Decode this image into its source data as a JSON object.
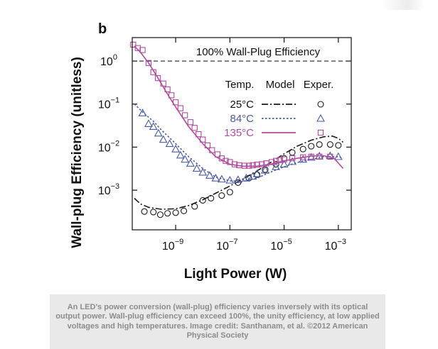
{
  "chart_data": {
    "type": "scatter",
    "panel_label": "b",
    "xlabel": "Light Power (W)",
    "ylabel": "Wall-plug Efficiency (unitless)",
    "xscale": "log",
    "yscale": "log",
    "xlim": [
      2.5e-11,
      0.003
    ],
    "ylim": [
      0.00012,
      3.5
    ],
    "x_ticks": [
      {
        "value": 1e-09,
        "base": "10",
        "exp": "−9"
      },
      {
        "value": 1e-07,
        "base": "10",
        "exp": "−7"
      },
      {
        "value": 1e-05,
        "base": "10",
        "exp": "−5"
      },
      {
        "value": 0.001,
        "base": "10",
        "exp": "−3"
      }
    ],
    "y_ticks": [
      {
        "value": 1,
        "base": "10",
        "exp": "0"
      },
      {
        "value": 0.1,
        "base": "10",
        "exp": "−1"
      },
      {
        "value": 0.01,
        "base": "10",
        "exp": "−2"
      },
      {
        "value": 0.001,
        "base": "10",
        "exp": "−3"
      }
    ],
    "reference_line": {
      "y": 1,
      "label": "100% Wall-Plug Efficiency",
      "style": "dashed"
    },
    "legend": {
      "placement": "top-right",
      "headers": [
        "Temp.",
        "Model",
        "Exper."
      ]
    },
    "series": [
      {
        "name": "25°C",
        "color": "#1a1a1a",
        "line_style": "dashdot",
        "marker": "circle",
        "model": [
          [
            3e-11,
            0.00065
          ],
          [
            5e-11,
            0.00048
          ],
          [
            1e-10,
            0.0004
          ],
          [
            3e-10,
            0.00036
          ],
          [
            1e-09,
            0.00037
          ],
          [
            3e-09,
            0.00044
          ],
          [
            1e-08,
            0.0006
          ],
          [
            3e-08,
            0.00085
          ],
          [
            1e-07,
            0.00125
          ],
          [
            3e-07,
            0.0018
          ],
          [
            1e-06,
            0.0028
          ],
          [
            3e-06,
            0.0043
          ],
          [
            1e-05,
            0.007
          ],
          [
            3e-05,
            0.0105
          ],
          [
            0.0001,
            0.0145
          ],
          [
            0.0003,
            0.0175
          ],
          [
            0.0006,
            0.018
          ],
          [
            0.001,
            0.016
          ],
          [
            0.0015,
            0.013
          ]
        ],
        "exper": [
          [
            7e-11,
            0.00032
          ],
          [
            1.5e-10,
            0.00031
          ],
          [
            2.7e-10,
            0.00027
          ],
          [
            5e-10,
            0.00029
          ],
          [
            1e-09,
            0.0003
          ],
          [
            2e-09,
            0.00033
          ],
          [
            5e-09,
            0.00042
          ],
          [
            1e-08,
            0.00058
          ],
          [
            2e-08,
            0.00065
          ],
          [
            5e-08,
            0.00075
          ],
          [
            1e-07,
            0.0009
          ],
          [
            2e-07,
            0.0015
          ],
          [
            5e-07,
            0.0019
          ],
          [
            1e-06,
            0.0023
          ],
          [
            2e-06,
            0.003
          ],
          [
            5e-06,
            0.004
          ],
          [
            1e-05,
            0.0055
          ],
          [
            2e-05,
            0.0075
          ],
          [
            5e-05,
            0.009
          ],
          [
            0.0001,
            0.0105
          ],
          [
            0.0002,
            0.0115
          ],
          [
            0.0005,
            0.0115
          ],
          [
            0.001,
            0.011
          ]
        ]
      },
      {
        "name": "84°C",
        "color": "#4a5aa8",
        "line_style": "dotted",
        "marker": "triangle",
        "model": [
          [
            3e-11,
            0.1
          ],
          [
            7e-11,
            0.06
          ],
          [
            1.5e-10,
            0.04
          ],
          [
            3e-10,
            0.025
          ],
          [
            1e-09,
            0.012
          ],
          [
            3e-09,
            0.006
          ],
          [
            1e-08,
            0.0032
          ],
          [
            3e-08,
            0.002
          ],
          [
            1e-07,
            0.00165
          ],
          [
            3e-07,
            0.0016
          ],
          [
            1e-06,
            0.0019
          ],
          [
            3e-06,
            0.0026
          ],
          [
            1e-05,
            0.0035
          ],
          [
            3e-05,
            0.0044
          ],
          [
            0.0001,
            0.0052
          ],
          [
            0.0003,
            0.006
          ],
          [
            0.001,
            0.006
          ],
          [
            0.0015,
            0.0055
          ]
        ],
        "exper": [
          [
            6e-11,
            0.062
          ],
          [
            1e-10,
            0.035
          ],
          [
            1.5e-10,
            0.03
          ],
          [
            2.3e-10,
            0.021
          ],
          [
            3.5e-10,
            0.015
          ],
          [
            6e-10,
            0.012
          ],
          [
            1e-09,
            0.009
          ],
          [
            1.5e-09,
            0.0065
          ],
          [
            2.2e-09,
            0.0052
          ],
          [
            3.5e-09,
            0.0042
          ],
          [
            6e-09,
            0.0032
          ],
          [
            1e-08,
            0.0026
          ],
          [
            1.8e-08,
            0.0022
          ],
          [
            3e-08,
            0.0019
          ],
          [
            5e-08,
            0.0018
          ],
          [
            1e-07,
            0.0017
          ],
          [
            2e-07,
            0.00175
          ],
          [
            4e-07,
            0.0019
          ],
          [
            7e-07,
            0.0021
          ],
          [
            1e-06,
            0.0024
          ],
          [
            2e-06,
            0.0029
          ],
          [
            5e-06,
            0.0035
          ],
          [
            1e-05,
            0.004
          ],
          [
            2e-05,
            0.0046
          ],
          [
            5e-05,
            0.0052
          ],
          [
            0.0001,
            0.0058
          ],
          [
            0.0002,
            0.0062
          ],
          [
            0.0005,
            0.0063
          ],
          [
            0.001,
            0.006
          ]
        ]
      },
      {
        "name": "135°C",
        "color": "#b24aa0",
        "line_style": "solid",
        "marker": "square",
        "model": [
          [
            3e-11,
            2.2
          ],
          [
            5e-11,
            1.6
          ],
          [
            1e-10,
            0.9
          ],
          [
            2e-10,
            0.45
          ],
          [
            5e-10,
            0.17
          ],
          [
            1e-09,
            0.085
          ],
          [
            3e-09,
            0.03
          ],
          [
            1e-08,
            0.012
          ],
          [
            3e-08,
            0.006
          ],
          [
            1e-07,
            0.004
          ],
          [
            3e-07,
            0.0036
          ],
          [
            1e-06,
            0.0036
          ],
          [
            3e-06,
            0.004
          ],
          [
            1e-05,
            0.0048
          ],
          [
            3e-05,
            0.0055
          ],
          [
            0.0001,
            0.0062
          ],
          [
            0.0003,
            0.0063
          ],
          [
            0.0007,
            0.0055
          ],
          [
            0.0015,
            0.0032
          ]
        ],
        "exper": [
          [
            2.7e-11,
            2.4
          ],
          [
            4e-11,
            2.0
          ],
          [
            6e-11,
            1.8
          ],
          [
            1e-10,
            0.9
          ],
          [
            1.5e-10,
            0.55
          ],
          [
            2.2e-10,
            0.4
          ],
          [
            3.5e-10,
            0.3
          ],
          [
            5e-10,
            0.22
          ],
          [
            7e-10,
            0.16
          ],
          [
            1e-09,
            0.11
          ],
          [
            1.5e-09,
            0.08
          ],
          [
            2.2e-09,
            0.055
          ],
          [
            3.5e-09,
            0.038
          ],
          [
            5e-09,
            0.028
          ],
          [
            7e-09,
            0.02
          ],
          [
            1e-08,
            0.015
          ],
          [
            1.5e-08,
            0.011
          ],
          [
            2.2e-08,
            0.0085
          ],
          [
            3.5e-08,
            0.0068
          ],
          [
            5e-08,
            0.0055
          ],
          [
            7e-08,
            0.0048
          ],
          [
            1e-07,
            0.0045
          ],
          [
            1.5e-07,
            0.004
          ],
          [
            2.2e-07,
            0.0038
          ],
          [
            3.5e-07,
            0.0037
          ],
          [
            5e-07,
            0.0037
          ],
          [
            7e-07,
            0.0038
          ],
          [
            1e-06,
            0.0039
          ],
          [
            1.5e-06,
            0.004
          ],
          [
            2.2e-06,
            0.0042
          ],
          [
            3.5e-06,
            0.0045
          ],
          [
            5e-06,
            0.0048
          ],
          [
            7e-06,
            0.005
          ],
          [
            1e-05,
            0.0052
          ],
          [
            2e-05,
            0.0055
          ],
          [
            5e-05,
            0.0058
          ],
          [
            0.0001,
            0.006
          ],
          [
            0.0002,
            0.006
          ],
          [
            0.0005,
            0.006
          ]
        ]
      }
    ]
  },
  "caption": "An LED's power conversion (wall-plug) efficiency varies inversely with its optical output power. Wall-plug efficiency can exceed 100%, the unity efficiency, at low applied voltages and high temperatures. Image credit: Santhanam, et al. ©2012 American Physical Society"
}
